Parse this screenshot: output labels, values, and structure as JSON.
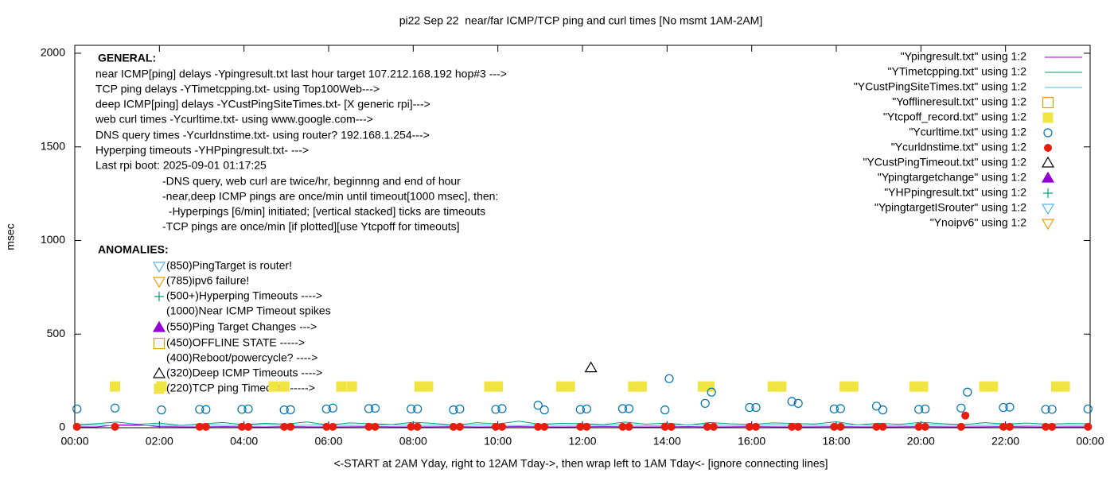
{
  "chart_data": {
    "type": "scatter",
    "title": "pi22 Sep 22  near/far ICMP/TCP ping and curl times [No msmt 1AM-2AM]",
    "x_label": "<-START at 2AM Yday, right to 12AM Tday->, then wrap left to 1AM Tday<- [ignore connecting lines]",
    "y_label": "msec",
    "xlim": [
      0,
      24
    ],
    "ylim": [
      0,
      2000
    ],
    "xticks": [
      {
        "value": 0,
        "label": "00:00"
      },
      {
        "value": 2,
        "label": "02:00"
      },
      {
        "value": 4,
        "label": "04:00"
      },
      {
        "value": 6,
        "label": "06:00"
      },
      {
        "value": 8,
        "label": "08:00"
      },
      {
        "value": 10,
        "label": "10:00"
      },
      {
        "value": 12,
        "label": "12:00"
      },
      {
        "value": 14,
        "label": "14:00"
      },
      {
        "value": 16,
        "label": "16:00"
      },
      {
        "value": 18,
        "label": "18:00"
      },
      {
        "value": 20,
        "label": "20:00"
      },
      {
        "value": 22,
        "label": "22:00"
      },
      {
        "value": 24,
        "label": "00:00"
      }
    ],
    "yticks": [
      0,
      500,
      1000,
      1500,
      2000
    ],
    "grid": false,
    "legend": "top-right",
    "annotations": [
      "GENERAL:",
      "near ICMP[ping] delays -Ypingresult.txt last hour target 107.212.168.192 hop#3 --->",
      "TCP ping delays -YTimetcpping.txt- using Top100Web--->",
      "deep ICMP[ping] delays -YCustPingSiteTimes.txt- [X generic rpi]--->",
      "web curl times -Ycurltime.txt- using www.google.com--->",
      "DNS query times -Ycurldnstime.txt- using router? 192.168.1.254--->",
      "Hyperping timeouts -YHPpingresult.txt- --->",
      "Last rpi boot: 2025-09-01 01:17:25",
      "-DNS query, web curl are twice/hr, beginnng and end of hour",
      "-near,deep ICMP pings are once/min until timeout[1000 msec], then:",
      "  -Hyperpings [6/min] initiated; [vertical stacked] ticks are timeouts",
      "-TCP pings are once/min [if plotted][use Ytcpoff for timeouts]",
      "ANOMALIES:",
      "(850)PingTarget is router!",
      "(785)ipv6 failure!",
      "(500+)Hyperping Timeouts ---->",
      "(1000)Near ICMP Timeout spikes",
      "(550)Ping Target Changes --->",
      "(450)OFFLINE STATE ----->",
      "(400)Reboot/powercycle? ---->",
      "(320)Deep ICMP Timeouts ---->",
      "(220)TCP ping Timeouts ----->"
    ],
    "series": [
      {
        "name": "\"Ypingresult.txt\" using 1:2",
        "color": "#9400d3",
        "style": "line",
        "x": [
          0,
          0.5,
          1,
          1.5,
          2,
          2.5,
          3,
          3.5,
          4,
          4.5,
          5,
          5.5,
          6,
          6.5,
          7,
          7.5,
          8,
          8.5,
          9,
          9.5,
          10,
          10.5,
          11,
          11.5,
          12,
          12.5,
          13,
          13.5,
          14,
          14.5,
          15,
          15.5,
          16,
          16.5,
          17,
          17.5,
          18,
          18.5,
          19,
          19.5,
          20,
          20.5,
          21,
          21.5,
          22,
          22.5,
          23,
          23.5,
          24
        ],
        "values": [
          5,
          4,
          15,
          15,
          6,
          5,
          4,
          6,
          5,
          4,
          6,
          5,
          4,
          5,
          6,
          5,
          4,
          5,
          6,
          4,
          5,
          6,
          5,
          4,
          5,
          6,
          5,
          4,
          5,
          6,
          4,
          5,
          6,
          5,
          4,
          5,
          6,
          5,
          4,
          5,
          6,
          5,
          4,
          5,
          6,
          5,
          4,
          5,
          5
        ]
      },
      {
        "name": "\"YTimetcpping.txt\" using 1:2",
        "color": "#009e73",
        "style": "line",
        "x": [
          0,
          0.5,
          1,
          1.5,
          2,
          2.5,
          3,
          3.5,
          4,
          4.5,
          5,
          5.5,
          6,
          6.5,
          7,
          7.5,
          8,
          8.5,
          9,
          9.5,
          10,
          10.5,
          11,
          11.5,
          12,
          12.5,
          13,
          13.5,
          14,
          14.5,
          15,
          15.5,
          16,
          16.5,
          17,
          17.5,
          18,
          18.5,
          19,
          19.5,
          20,
          20.5,
          21,
          21.5,
          22,
          22.5,
          23,
          23.5,
          24
        ],
        "values": [
          15,
          22,
          30,
          18,
          25,
          12,
          20,
          28,
          16,
          24,
          19,
          31,
          14,
          26,
          21,
          17,
          29,
          23,
          13,
          27,
          20,
          35,
          18,
          24,
          22,
          16,
          30,
          19,
          25,
          14,
          28,
          21,
          17,
          26,
          23,
          20,
          32,
          15,
          24,
          18,
          29,
          22,
          16,
          27,
          20,
          25,
          19,
          23,
          21
        ]
      },
      {
        "name": "\"YCustPingSiteTimes.txt\" using 1:2",
        "color": "#56b4e9",
        "style": "line",
        "x": [
          0,
          0.5,
          1,
          1.5,
          2,
          2.5,
          3,
          3.5,
          4,
          4.5,
          5,
          5.5,
          6,
          6.5,
          7,
          7.5,
          8,
          8.5,
          9,
          9.5,
          10,
          10.5,
          11,
          11.5,
          12,
          12.5,
          13,
          13.5,
          14,
          14.5,
          15,
          15.5,
          16,
          16.5,
          17,
          17.5,
          18,
          18.5,
          19,
          19.5,
          20,
          20.5,
          21,
          21.5,
          22,
          22.5,
          23,
          23.5,
          24
        ],
        "values": [
          12,
          15,
          10,
          10,
          14,
          11,
          16,
          13,
          12,
          17,
          11,
          14,
          15,
          12,
          13,
          16,
          11,
          14,
          12,
          15,
          13,
          11,
          16,
          12,
          14,
          13,
          15,
          11,
          12,
          16,
          14,
          13,
          11,
          15,
          12,
          14,
          13,
          16,
          11,
          12,
          15,
          14,
          13,
          12,
          16,
          11,
          14,
          13,
          12
        ]
      },
      {
        "name": "\"Yofflineresult.txt\" using 1:2",
        "color": "#e69f00",
        "style": "square-open",
        "x": [],
        "values": []
      },
      {
        "name": "\"Ytcpoff_record.txt\" using 1:2",
        "color": "#f0e442",
        "style": "square-filled",
        "x": [
          0.95,
          2.05,
          4.7,
          4.95,
          6.3,
          6.55,
          8.15,
          8.35,
          9.8,
          10.0,
          11.5,
          11.7,
          13.2,
          13.4,
          14.85,
          15.0,
          16.5,
          16.7,
          18.2,
          18.4,
          19.85,
          20.05,
          21.5,
          21.7,
          23.2,
          23.4
        ],
        "values": [
          220,
          220,
          220,
          220,
          220,
          220,
          220,
          220,
          220,
          220,
          220,
          220,
          220,
          220,
          220,
          220,
          220,
          220,
          220,
          220,
          220,
          220,
          220,
          220,
          220,
          220
        ]
      },
      {
        "name": "\"Ycurltime.txt\" using 1:2",
        "color": "#0072b2",
        "style": "circle-open",
        "x": [
          0.05,
          0.95,
          2.05,
          2.95,
          3.1,
          3.95,
          4.1,
          4.95,
          5.1,
          5.95,
          6.1,
          6.95,
          7.1,
          7.95,
          8.1,
          8.95,
          9.1,
          9.95,
          10.1,
          10.95,
          11.1,
          11.95,
          12.1,
          12.95,
          13.1,
          13.95,
          14.05,
          14.9,
          15.05,
          15.95,
          16.1,
          16.95,
          17.1,
          17.95,
          18.1,
          18.95,
          19.1,
          19.95,
          20.1,
          20.95,
          21.1,
          21.95,
          22.1,
          22.95,
          23.1,
          23.95
        ],
        "values": [
          100,
          105,
          95,
          98,
          97,
          98,
          100,
          95,
          96,
          100,
          105,
          102,
          104,
          100,
          100,
          95,
          100,
          98,
          102,
          120,
          95,
          97,
          100,
          102,
          102,
          95,
          262,
          130,
          190,
          108,
          108,
          140,
          130,
          100,
          102,
          115,
          95,
          98,
          100,
          105,
          190,
          108,
          110,
          98,
          98,
          100
        ]
      },
      {
        "name": "\"Ycurldnstime.txt\" using 1:2",
        "color": "#e51e10",
        "style": "circle-filled",
        "x": [
          0.05,
          0.95,
          2.95,
          3.1,
          3.95,
          4.1,
          4.95,
          5.1,
          5.95,
          6.1,
          6.95,
          7.1,
          7.95,
          8.1,
          8.95,
          9.1,
          9.95,
          10.1,
          10.95,
          11.1,
          11.95,
          12.1,
          12.95,
          13.1,
          13.95,
          14.1,
          14.95,
          15.1,
          15.95,
          16.1,
          16.95,
          17.1,
          17.95,
          18.1,
          18.95,
          19.1,
          19.95,
          20.1,
          20.95,
          21.05,
          21.95,
          22.1,
          22.95,
          23.1,
          23.95
        ],
        "values": [
          5,
          5,
          5,
          5,
          5,
          5,
          5,
          5,
          5,
          5,
          5,
          5,
          5,
          5,
          5,
          5,
          5,
          5,
          5,
          5,
          5,
          5,
          5,
          5,
          5,
          5,
          5,
          5,
          5,
          5,
          5,
          5,
          5,
          5,
          5,
          5,
          5,
          5,
          5,
          65,
          5,
          5,
          5,
          5,
          5
        ]
      },
      {
        "name": "\"YCustPingTimeout.txt\" using 1:2",
        "color": "#000000",
        "style": "triangle-up-open",
        "x": [
          12.2
        ],
        "values": [
          320
        ]
      },
      {
        "name": "\"Ypingtargetchange\" using 1:2",
        "color": "#9400d3",
        "style": "triangle-up-filled",
        "x": [],
        "values": []
      },
      {
        "name": "\"YHPpingresult.txt\" using 1:2",
        "color": "#009e73",
        "style": "plus",
        "x": [],
        "values": []
      },
      {
        "name": "\"YpingtargetISrouter\" using 1:2",
        "color": "#56b4e9",
        "style": "triangle-down-open",
        "x": [],
        "values": []
      },
      {
        "name": "\"Ynoipv6\" using 1:2",
        "color": "#e69f00",
        "style": "triangle-down-open",
        "x": [],
        "values": []
      }
    ]
  }
}
